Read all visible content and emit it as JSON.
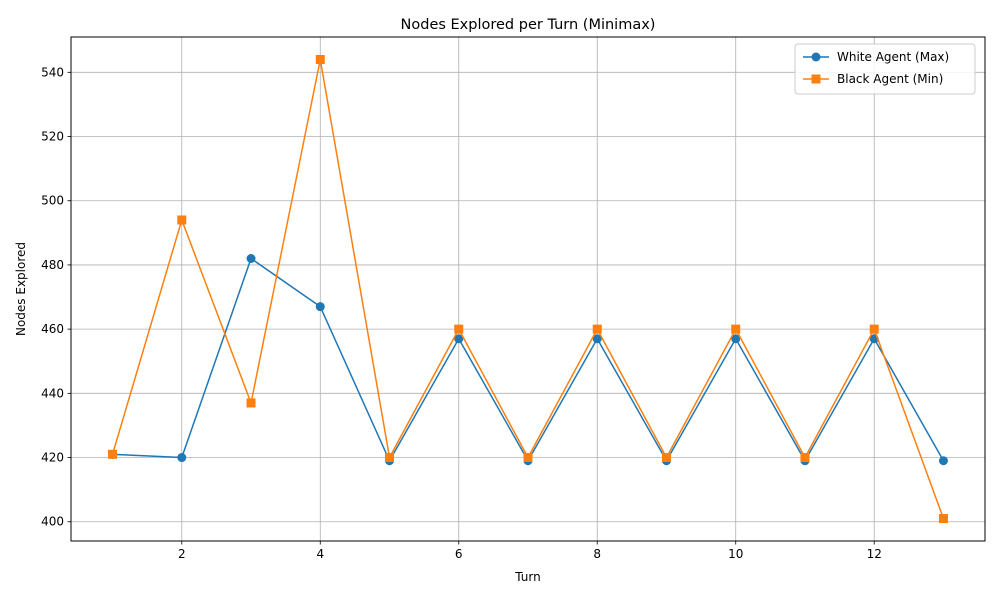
{
  "chart_data": {
    "type": "line",
    "title": "Nodes Explored per Turn (Minimax)",
    "xlabel": "Turn",
    "ylabel": "Nodes Explored",
    "x": [
      1,
      2,
      3,
      4,
      5,
      6,
      7,
      8,
      9,
      10,
      11,
      12,
      13
    ],
    "xlim": [
      0.4,
      13.6
    ],
    "ylim": [
      394,
      551
    ],
    "xticks": [
      2,
      4,
      6,
      8,
      10,
      12
    ],
    "yticks": [
      400,
      420,
      440,
      460,
      480,
      500,
      520,
      540
    ],
    "grid": true,
    "legend_position": "top-right",
    "series": [
      {
        "name": "White Agent (Max)",
        "color": "#1f77b4",
        "marker": "circle",
        "values": [
          421,
          420,
          482,
          467,
          419,
          457,
          419,
          457,
          419,
          457,
          419,
          457,
          419
        ]
      },
      {
        "name": "Black Agent (Min)",
        "color": "#ff7f0e",
        "marker": "square",
        "values": [
          421,
          494,
          437,
          544,
          420,
          460,
          420,
          460,
          420,
          460,
          420,
          460,
          401
        ]
      }
    ]
  }
}
